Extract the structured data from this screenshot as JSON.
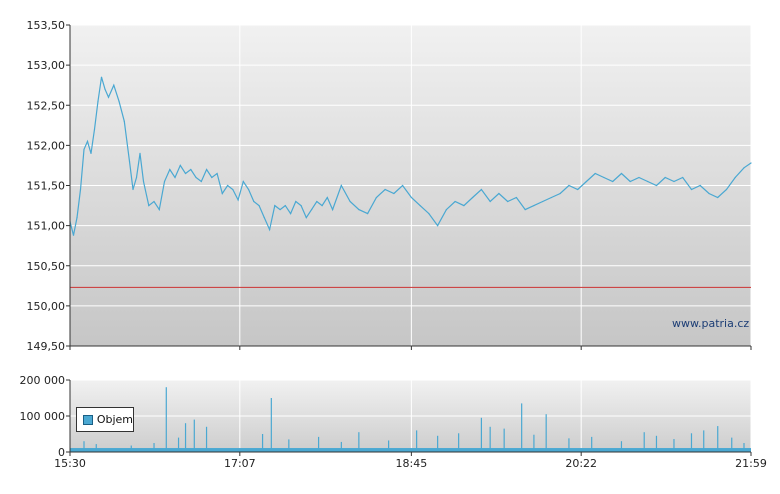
{
  "chart_data": [
    {
      "type": "line",
      "title": "",
      "xlabel": "",
      "ylabel": "",
      "ylim": [
        149.5,
        153.5
      ],
      "yticks": [
        "153,50",
        "153,00",
        "152,50",
        "152,00",
        "151,50",
        "151,00",
        "150,50",
        "150,00",
        "149,50"
      ],
      "ytick_values": [
        153.5,
        153.0,
        152.5,
        152.0,
        151.5,
        151.0,
        150.5,
        150.0,
        149.5
      ],
      "xticks": [
        "15:30",
        "17:07",
        "18:45",
        "20:22",
        "21:59"
      ],
      "xtick_values": [
        "15:30",
        "17:07",
        "18:45",
        "20:22",
        "21:59"
      ],
      "xlim": [
        "15:30",
        "21:59"
      ],
      "grid": true,
      "reference_line": {
        "value": 150.23,
        "color": "#cc3333"
      },
      "line_color": "#4aa8d2",
      "watermark": "www.patria.cz",
      "series": [
        {
          "x": [
            "15:30",
            "15:32",
            "15:34",
            "15:36",
            "15:38",
            "15:40",
            "15:42",
            "15:44",
            "15:46",
            "15:48",
            "15:50",
            "15:52",
            "15:55",
            "15:58",
            "16:01",
            "16:04",
            "16:06",
            "16:08",
            "16:10",
            "16:12",
            "16:15",
            "16:18",
            "16:21",
            "16:24",
            "16:27",
            "16:30",
            "16:33",
            "16:36",
            "16:39",
            "16:42",
            "16:45",
            "16:48",
            "16:51",
            "16:54",
            "16:57",
            "17:00",
            "17:03",
            "17:06",
            "17:09",
            "17:12",
            "17:15",
            "17:18",
            "17:21",
            "17:24",
            "17:27",
            "17:30",
            "17:33",
            "17:36",
            "17:39",
            "17:42",
            "17:45",
            "17:48",
            "17:51",
            "17:54",
            "17:57",
            "18:00",
            "18:05",
            "18:10",
            "18:15",
            "18:20",
            "18:25",
            "18:30",
            "18:35",
            "18:40",
            "18:45",
            "18:50",
            "18:55",
            "19:00",
            "19:05",
            "19:10",
            "19:15",
            "19:20",
            "19:25",
            "19:30",
            "19:35",
            "19:40",
            "19:45",
            "19:50",
            "19:55",
            "20:00",
            "20:05",
            "20:10",
            "20:15",
            "20:20",
            "20:25",
            "20:30",
            "20:35",
            "20:40",
            "20:45",
            "20:50",
            "20:55",
            "21:00",
            "21:05",
            "21:10",
            "21:15",
            "21:20",
            "21:25",
            "21:30",
            "21:35",
            "21:40",
            "21:45",
            "21:50",
            "21:55",
            "21:59"
          ],
          "values": [
            151.05,
            150.88,
            151.1,
            151.45,
            151.95,
            152.05,
            151.9,
            152.2,
            152.55,
            152.85,
            152.7,
            152.6,
            152.75,
            152.55,
            152.3,
            151.8,
            151.45,
            151.6,
            151.9,
            151.55,
            151.25,
            151.3,
            151.2,
            151.55,
            151.7,
            151.6,
            151.75,
            151.65,
            151.7,
            151.6,
            151.55,
            151.7,
            151.6,
            151.65,
            151.4,
            151.5,
            151.45,
            151.32,
            151.55,
            151.45,
            151.3,
            151.25,
            151.1,
            150.95,
            151.25,
            151.2,
            151.25,
            151.15,
            151.3,
            151.25,
            151.1,
            151.2,
            151.3,
            151.25,
            151.35,
            151.2,
            151.5,
            151.3,
            151.2,
            151.15,
            151.35,
            151.45,
            151.4,
            151.5,
            151.35,
            151.25,
            151.15,
            151.0,
            151.2,
            151.3,
            151.25,
            151.35,
            151.45,
            151.3,
            151.4,
            151.3,
            151.35,
            151.2,
            151.25,
            151.3,
            151.35,
            151.4,
            151.5,
            151.45,
            151.55,
            151.65,
            151.6,
            151.55,
            151.65,
            151.55,
            151.6,
            151.55,
            151.5,
            151.6,
            151.55,
            151.6,
            151.45,
            151.5,
            151.4,
            151.35,
            151.45,
            151.6,
            151.72,
            151.78
          ]
        }
      ]
    },
    {
      "type": "bar",
      "title": "",
      "ylim": [
        0,
        200000
      ],
      "yticks": [
        "200 000",
        "100 000",
        "0"
      ],
      "ytick_values": [
        200000,
        100000,
        0
      ],
      "xticks": [
        "15:30",
        "17:07",
        "18:45",
        "20:22",
        "21:59"
      ],
      "bar_color": "#4aa8d2",
      "legend": {
        "label": "Objem",
        "placement": "left"
      },
      "spikes": [
        {
          "t": "15:38",
          "v": 30000
        },
        {
          "t": "15:45",
          "v": 22000
        },
        {
          "t": "16:05",
          "v": 18000
        },
        {
          "t": "16:18",
          "v": 25000
        },
        {
          "t": "16:25",
          "v": 180000
        },
        {
          "t": "16:32",
          "v": 40000
        },
        {
          "t": "16:36",
          "v": 80000
        },
        {
          "t": "16:41",
          "v": 90000
        },
        {
          "t": "16:48",
          "v": 70000
        },
        {
          "t": "17:20",
          "v": 50000
        },
        {
          "t": "17:25",
          "v": 150000
        },
        {
          "t": "17:35",
          "v": 35000
        },
        {
          "t": "17:52",
          "v": 42000
        },
        {
          "t": "18:05",
          "v": 28000
        },
        {
          "t": "18:15",
          "v": 55000
        },
        {
          "t": "18:32",
          "v": 32000
        },
        {
          "t": "18:48",
          "v": 60000
        },
        {
          "t": "19:00",
          "v": 45000
        },
        {
          "t": "19:12",
          "v": 52000
        },
        {
          "t": "19:25",
          "v": 95000
        },
        {
          "t": "19:30",
          "v": 70000
        },
        {
          "t": "19:38",
          "v": 65000
        },
        {
          "t": "19:48",
          "v": 135000
        },
        {
          "t": "19:55",
          "v": 48000
        },
        {
          "t": "20:02",
          "v": 105000
        },
        {
          "t": "20:15",
          "v": 38000
        },
        {
          "t": "20:28",
          "v": 42000
        },
        {
          "t": "20:45",
          "v": 30000
        },
        {
          "t": "20:58",
          "v": 55000
        },
        {
          "t": "21:05",
          "v": 45000
        },
        {
          "t": "21:15",
          "v": 36000
        },
        {
          "t": "21:25",
          "v": 52000
        },
        {
          "t": "21:32",
          "v": 60000
        },
        {
          "t": "21:40",
          "v": 72000
        },
        {
          "t": "21:48",
          "v": 40000
        },
        {
          "t": "21:55",
          "v": 25000
        }
      ],
      "base_level": 11000
    }
  ]
}
